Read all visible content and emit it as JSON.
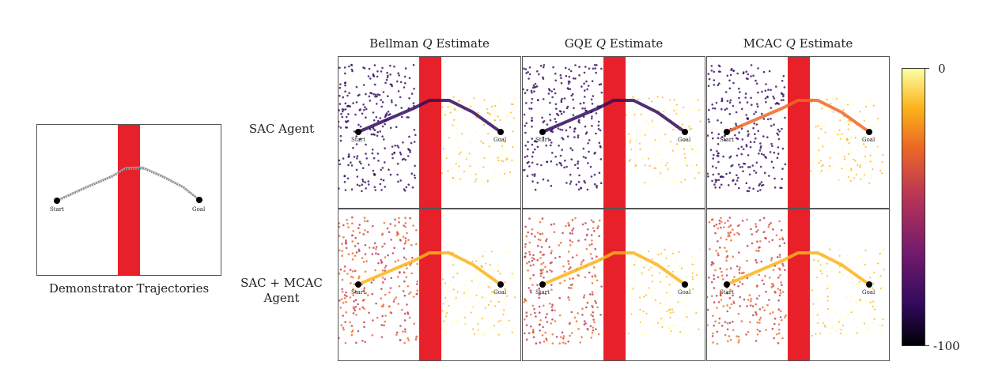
{
  "demo": {
    "caption": "Demonstrator Trajectories",
    "start_label": "Start",
    "goal_label": "Goal"
  },
  "columns": [
    {
      "id": "bellman",
      "prefix": "Bellman ",
      "q": "Q",
      "suffix": " Estimate"
    },
    {
      "id": "gqe",
      "prefix": "GQE ",
      "q": "Q",
      "suffix": " Estimate"
    },
    {
      "id": "mcac",
      "prefix": "MCAC ",
      "q": "Q",
      "suffix": " Estimate"
    }
  ],
  "rows": [
    {
      "id": "sac",
      "label_line1": "SAC Agent",
      "label_line2": ""
    },
    {
      "id": "sac-mcac",
      "label_line1": "SAC + MCAC",
      "label_line2": "Agent"
    }
  ],
  "panel_labels": {
    "start": "Start",
    "goal": "Goal"
  },
  "colorbar": {
    "max_label": "0",
    "min_label": "-100",
    "colormap": "inferno",
    "stops": [
      "#000004",
      "#320a5e",
      "#781c6d",
      "#bc3754",
      "#ed6925",
      "#fbb41a",
      "#fcffa4"
    ]
  },
  "colors": {
    "obstacle": "#e8202a",
    "marker": "#000000",
    "demo_path": "#888888"
  }
}
